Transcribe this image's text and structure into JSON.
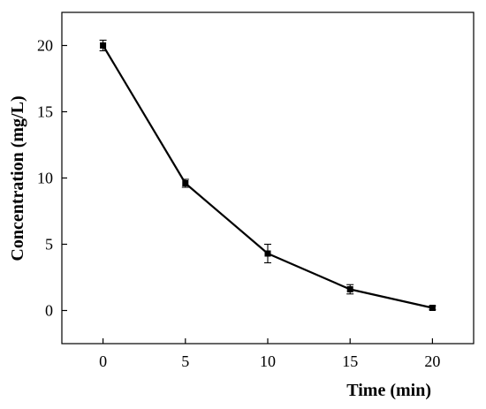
{
  "chart_data": {
    "type": "line",
    "title": "",
    "xlabel": "Time (min)",
    "ylabel": "Concentration (mg/L)",
    "xlim": [
      -2.5,
      22.5
    ],
    "ylim": [
      -2.5,
      22.5
    ],
    "x_ticks": [
      0,
      5,
      10,
      15,
      20
    ],
    "y_ticks": [
      0,
      5,
      10,
      15,
      20
    ],
    "grid": false,
    "legend": "none",
    "series": [
      {
        "x": [
          0,
          5,
          10,
          15,
          20
        ],
        "y": [
          20.0,
          9.6,
          4.3,
          1.6,
          0.2
        ],
        "error": [
          0.4,
          0.3,
          0.7,
          0.35,
          0.15
        ],
        "color": "#000000",
        "marker": "square"
      }
    ]
  }
}
